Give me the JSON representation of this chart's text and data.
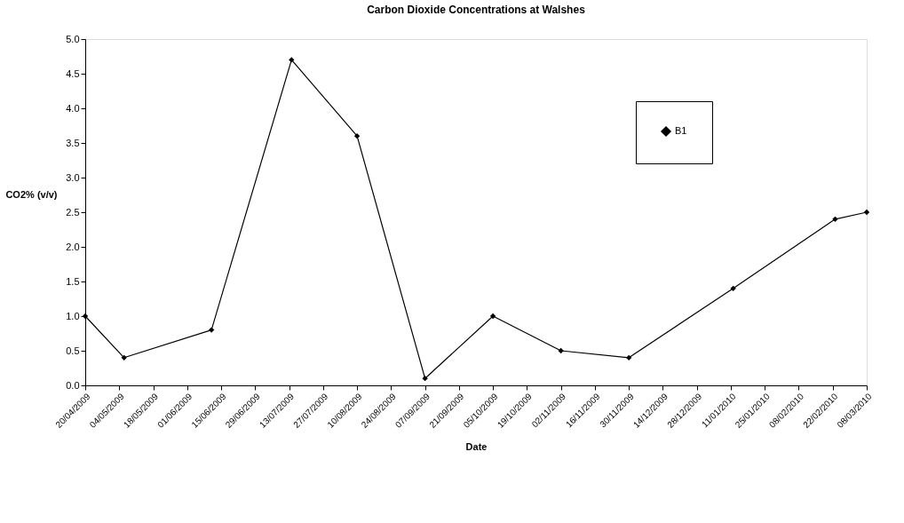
{
  "chart_data": {
    "type": "line",
    "title": "Carbon Dioxide Concentrations at Walshes",
    "xlabel": "Date",
    "ylabel": "CO2% (v/v)",
    "x": [
      "2009-04-20",
      "2009-05-06",
      "2009-06-11",
      "2009-07-14",
      "2009-08-10",
      "2009-09-07",
      "2009-10-05",
      "2009-11-02",
      "2009-11-30",
      "2010-01-12",
      "2010-02-23",
      "2010-03-08"
    ],
    "series": [
      {
        "name": "B1",
        "color": "#000000",
        "values": [
          1.0,
          0.4,
          0.8,
          4.7,
          3.6,
          0.1,
          1.0,
          0.5,
          0.4,
          1.4,
          2.4,
          2.5
        ]
      }
    ],
    "xlim": [
      "2009-04-20",
      "2010-03-08"
    ],
    "xticks": [
      {
        "value": "2009-04-20",
        "label": "20/04/2009"
      },
      {
        "value": "2009-05-04",
        "label": "04/05/2009"
      },
      {
        "value": "2009-05-18",
        "label": "18/05/2009"
      },
      {
        "value": "2009-06-01",
        "label": "01/06/2009"
      },
      {
        "value": "2009-06-15",
        "label": "15/06/2009"
      },
      {
        "value": "2009-06-29",
        "label": "29/06/2009"
      },
      {
        "value": "2009-07-13",
        "label": "13/07/2009"
      },
      {
        "value": "2009-07-27",
        "label": "27/07/2009"
      },
      {
        "value": "2009-08-10",
        "label": "10/08/2009"
      },
      {
        "value": "2009-08-24",
        "label": "24/08/2009"
      },
      {
        "value": "2009-09-07",
        "label": "07/09/2009"
      },
      {
        "value": "2009-09-21",
        "label": "21/09/2009"
      },
      {
        "value": "2009-10-05",
        "label": "05/10/2009"
      },
      {
        "value": "2009-10-19",
        "label": "19/10/2009"
      },
      {
        "value": "2009-11-02",
        "label": "02/11/2009"
      },
      {
        "value": "2009-11-16",
        "label": "16/11/2009"
      },
      {
        "value": "2009-11-30",
        "label": "30/11/2009"
      },
      {
        "value": "2009-12-14",
        "label": "14/12/2009"
      },
      {
        "value": "2009-12-28",
        "label": "28/12/2009"
      },
      {
        "value": "2010-01-11",
        "label": "11/01/2010"
      },
      {
        "value": "2010-01-25",
        "label": "25/01/2010"
      },
      {
        "value": "2010-02-08",
        "label": "08/02/2010"
      },
      {
        "value": "2010-02-22",
        "label": "22/02/2010"
      },
      {
        "value": "2010-03-08",
        "label": "08/03/2010"
      }
    ],
    "ylim": [
      0,
      5
    ],
    "yticks": [
      {
        "value": 0,
        "label": "0.0"
      },
      {
        "value": 0.5,
        "label": "0.5"
      },
      {
        "value": 1,
        "label": "1.0"
      },
      {
        "value": 1.5,
        "label": "1.5"
      },
      {
        "value": 2,
        "label": "2.0"
      },
      {
        "value": 2.5,
        "label": "2.5"
      },
      {
        "value": 3,
        "label": "3.0"
      },
      {
        "value": 3.5,
        "label": "3.5"
      },
      {
        "value": 4,
        "label": "4.0"
      },
      {
        "value": 4.5,
        "label": "4.5"
      },
      {
        "value": 5,
        "label": "5.0"
      }
    ],
    "grid": false,
    "legend": "top right",
    "marker": "diamond",
    "line_style": "solid"
  }
}
